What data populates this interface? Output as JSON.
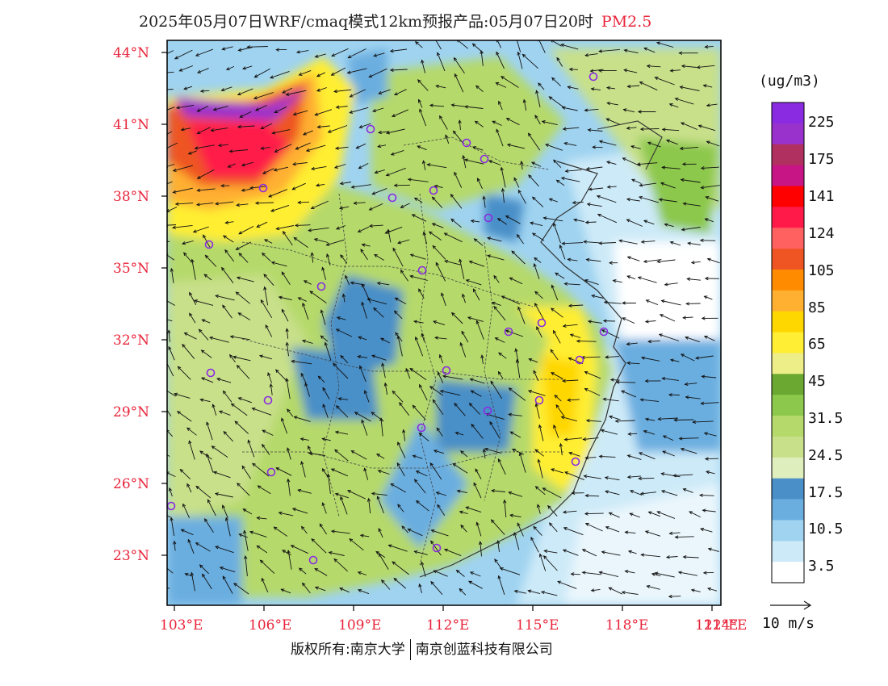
{
  "header": {
    "title": "2025年05月07日WRF/cmaq模式12km预报产品:05月07日20时",
    "variable": "PM2.5"
  },
  "map": {
    "lat_labels": [
      "44°N",
      "41°N",
      "38°N",
      "35°N",
      "32°N",
      "29°N",
      "26°N",
      "23°N"
    ],
    "lon_labels": [
      "103°E",
      "106°E",
      "109°E",
      "112°E",
      "115°E",
      "118°E",
      "121°E",
      "124°E"
    ]
  },
  "legend": {
    "unit": "(ug/m3)",
    "labels": [
      "225",
      "175",
      "141",
      "124",
      "105",
      "85",
      "65",
      "45",
      "31.5",
      "24.5",
      "17.5",
      "10.5",
      "3.5"
    ],
    "colors": [
      "#8a2be2",
      "#9932cc",
      "#b03060",
      "#c71585",
      "#ff0000",
      "#ff1a4a",
      "#ff6060",
      "#ee5522",
      "#ff8c00",
      "#ffb030",
      "#ffd700",
      "#ffee33",
      "#eeee88",
      "#6aa832",
      "#8cc84b",
      "#b5d96a",
      "#c8e08a",
      "#dfeebd",
      "#4a8fc8",
      "#6aaee0",
      "#9fd3f0",
      "#cdeaf8",
      "#ffffff"
    ],
    "wind_scale_label": "10 m/s"
  },
  "footer": {
    "copyright_left": "版权所有:南京大学",
    "copyright_right": "南京创蓝科技有限公司"
  }
}
